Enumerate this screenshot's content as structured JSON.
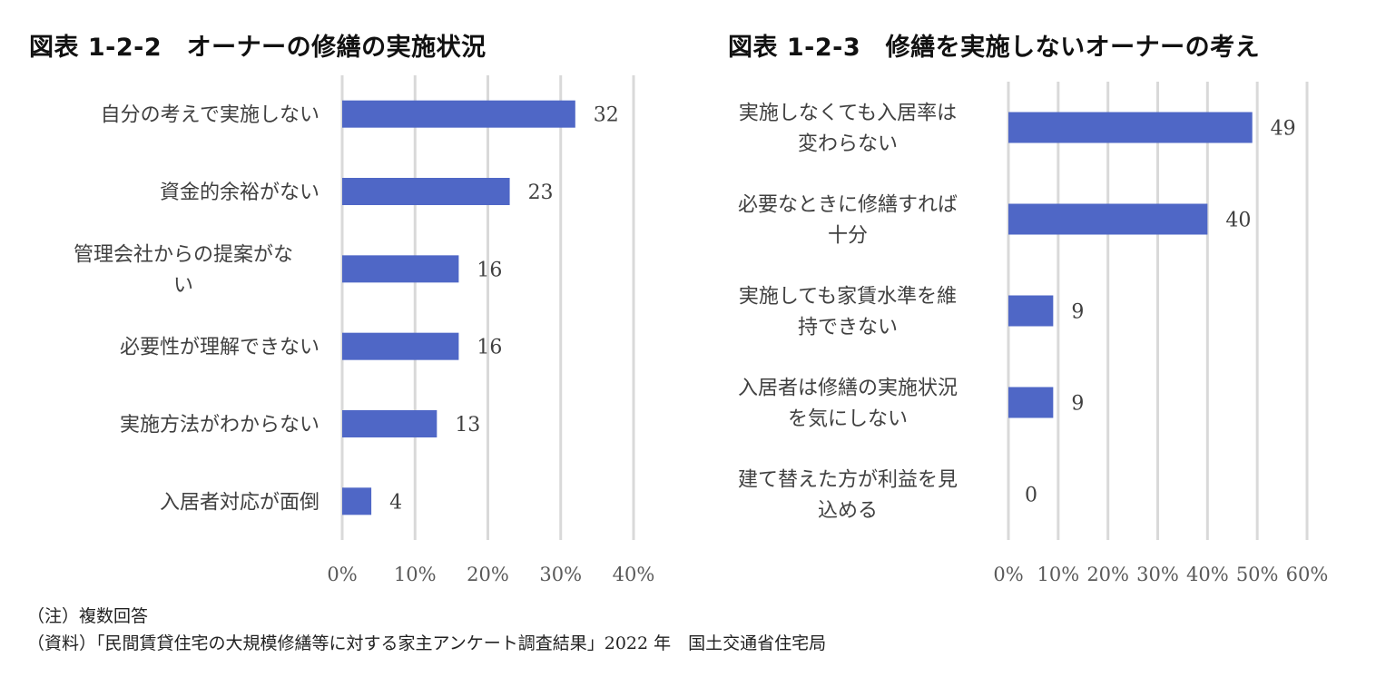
{
  "bar_color": "#4f67c6",
  "grid_color": "#d9d9d9",
  "chart_data": [
    {
      "type": "bar",
      "orientation": "horizontal",
      "title": "図表 1-2-2　オーナーの修繕の実施状況",
      "categories": [
        [
          "自分の考えで実施しない"
        ],
        [
          "資金的余裕がない"
        ],
        [
          "管理会社からの提案がな",
          "い"
        ],
        [
          "必要性が理解できない"
        ],
        [
          "実施方法がわからない"
        ],
        [
          "入居者対応が面倒"
        ]
      ],
      "values": [
        32,
        23,
        16,
        16,
        13,
        4
      ],
      "value_labels": [
        "32",
        "23",
        "16",
        "16",
        "13",
        "4"
      ],
      "xlim": [
        0,
        40
      ],
      "xticks": [
        "0%",
        "10%",
        "20%",
        "30%",
        "40%"
      ],
      "xlabel": "",
      "ylabel": "",
      "grid": true,
      "legend": "none"
    },
    {
      "type": "bar",
      "orientation": "horizontal",
      "title": "図表 1-2-3　修繕を実施しないオーナーの考え",
      "categories": [
        [
          "実施しなくても入居率は",
          "変わらない"
        ],
        [
          "必要なときに修繕すれば",
          "十分"
        ],
        [
          "実施しても家賃水準を維",
          "持できない"
        ],
        [
          "入居者は修繕の実施状況",
          "を気にしない"
        ],
        [
          "建て替えた方が利益を見",
          "込める"
        ]
      ],
      "values": [
        49,
        40,
        9,
        9,
        0
      ],
      "value_labels": [
        "49",
        "40",
        "9",
        "9",
        "0"
      ],
      "xlim": [
        0,
        60
      ],
      "xticks": [
        "0%",
        "10%",
        "20%",
        "30%",
        "40%",
        "50%",
        "60%"
      ],
      "xlabel": "",
      "ylabel": "",
      "grid": true,
      "legend": "none"
    }
  ],
  "notes": {
    "note": "（注）複数回答",
    "source": "（資料）「民間賃貸住宅の大規模修繕等に対する家主アンケート調査結果」2022 年　国土交通省住宅局"
  }
}
